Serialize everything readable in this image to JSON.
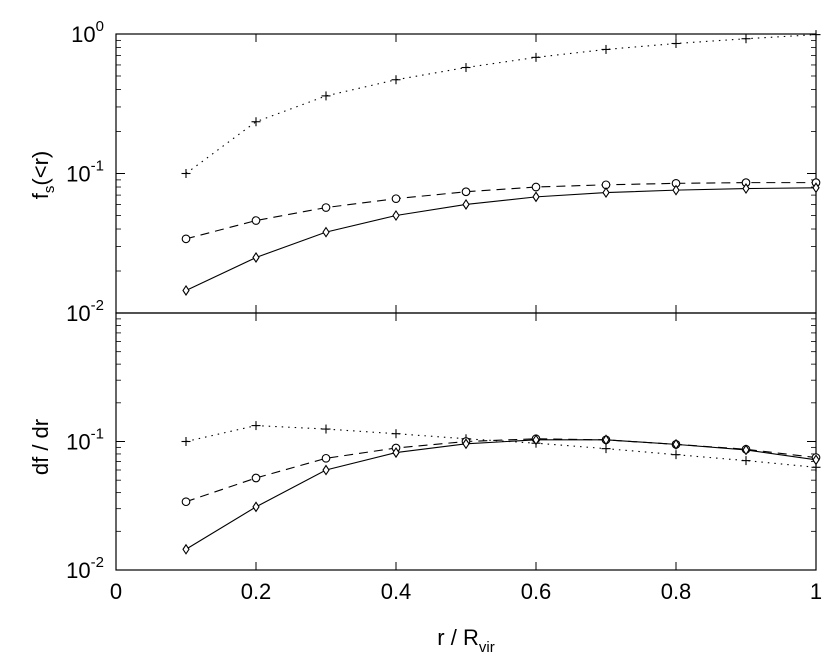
{
  "chart_data": [
    {
      "type": "line",
      "panel": "top",
      "ylabel_main": "f",
      "ylabel_sub": "s",
      "ylabel_tail": "(<r)",
      "yscale": "log",
      "ylim": [
        0.01,
        1
      ],
      "xlim": [
        0,
        1
      ],
      "yticks": [
        {
          "base": "10",
          "exp": "-2",
          "value": 0.01
        },
        {
          "base": "10",
          "exp": "-1",
          "value": 0.1
        },
        {
          "base": "10",
          "exp": "0",
          "value": 1
        }
      ],
      "series": [
        {
          "style": "dotted",
          "marker": "plus",
          "x": [
            0.1,
            0.2,
            0.3,
            0.4,
            0.5,
            0.6,
            0.7,
            0.8,
            0.9,
            1.0
          ],
          "y": [
            0.1,
            0.235,
            0.36,
            0.47,
            0.575,
            0.68,
            0.775,
            0.855,
            0.925,
            0.99
          ]
        },
        {
          "style": "dashed",
          "marker": "circle",
          "x": [
            0.1,
            0.2,
            0.3,
            0.4,
            0.5,
            0.6,
            0.7,
            0.8,
            0.9,
            1.0
          ],
          "y": [
            0.034,
            0.046,
            0.057,
            0.066,
            0.074,
            0.08,
            0.083,
            0.085,
            0.086,
            0.086
          ]
        },
        {
          "style": "solid",
          "marker": "diamond",
          "x": [
            0.1,
            0.2,
            0.3,
            0.4,
            0.5,
            0.6,
            0.7,
            0.8,
            0.9,
            1.0
          ],
          "y": [
            0.0145,
            0.025,
            0.038,
            0.05,
            0.06,
            0.068,
            0.073,
            0.076,
            0.078,
            0.079
          ]
        }
      ]
    },
    {
      "type": "line",
      "panel": "bottom",
      "ylabel": "df / dr",
      "yscale": "log",
      "ylim": [
        0.01,
        1
      ],
      "xlim": [
        0,
        1
      ],
      "yticks": [
        {
          "base": "10",
          "exp": "-2",
          "value": 0.01
        },
        {
          "base": "10",
          "exp": "-1",
          "value": 0.1
        }
      ],
      "xticks": [
        "0",
        "0.2",
        "0.4",
        "0.6",
        "0.8",
        "1"
      ],
      "xtick_values": [
        0,
        0.2,
        0.4,
        0.6,
        0.8,
        1.0
      ],
      "xlabel_main": "r / R",
      "xlabel_sub": "vir",
      "series": [
        {
          "style": "dotted",
          "marker": "plus",
          "x": [
            0.1,
            0.2,
            0.3,
            0.4,
            0.5,
            0.6,
            0.7,
            0.8,
            0.9,
            1.0
          ],
          "y": [
            0.1,
            0.133,
            0.125,
            0.115,
            0.105,
            0.097,
            0.088,
            0.079,
            0.071,
            0.063
          ]
        },
        {
          "style": "dashed",
          "marker": "circle",
          "x": [
            0.1,
            0.2,
            0.3,
            0.4,
            0.5,
            0.6,
            0.7,
            0.8,
            0.9,
            1.0
          ],
          "y": [
            0.034,
            0.052,
            0.074,
            0.089,
            0.1,
            0.105,
            0.103,
            0.095,
            0.087,
            0.075
          ]
        },
        {
          "style": "solid",
          "marker": "diamond",
          "x": [
            0.1,
            0.2,
            0.3,
            0.4,
            0.5,
            0.6,
            0.7,
            0.8,
            0.9,
            1.0
          ],
          "y": [
            0.0145,
            0.031,
            0.06,
            0.082,
            0.096,
            0.103,
            0.103,
            0.095,
            0.086,
            0.072
          ]
        }
      ]
    }
  ]
}
